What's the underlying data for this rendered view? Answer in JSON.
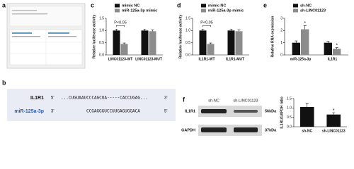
{
  "panel_labels": [
    "a",
    "b",
    "c",
    "d",
    "e",
    "f"
  ],
  "sequence": {
    "rows": [
      {
        "name": "IL1R1",
        "end5": "5'",
        "seq": "...CUGUAAUCCCAGCUA-----CACCUGAG...",
        "end3": "3'"
      },
      {
        "name": "miR-125a-3p",
        "end5": "3'",
        "seq": "CCGAGGGUCCUUGAGUGGACA",
        "end3": "5'"
      }
    ]
  },
  "blot": {
    "lanes": [
      "sh-NC",
      "sh-LINC01123"
    ],
    "proteins": [
      "IL1R1",
      "GAPDH"
    ],
    "sizes": [
      "56kDa",
      "37kDa"
    ]
  },
  "chart_data": [
    {
      "type": "bar",
      "ylabel": "Relative luciferase activity",
      "categories": [
        "LINC01123-WT",
        "LINC01123-MUT"
      ],
      "series": [
        {
          "name": "mimic NC",
          "color": "#111111",
          "values": [
            1.0,
            1.0
          ],
          "errors": [
            0.06,
            0.06
          ]
        },
        {
          "name": "miR-125a-3p mimic",
          "color": "#8c8c8c",
          "values": [
            0.45,
            0.97
          ],
          "errors": [
            0.04,
            0.06
          ]
        }
      ],
      "ylim": [
        0,
        1.5
      ],
      "yticks": [
        {
          "value": 0,
          "label": "0.0"
        },
        0.5,
        {
          "value": 1,
          "label": "1.0"
        },
        1.5
      ],
      "annotations": [
        "P<0.05"
      ]
    },
    {
      "type": "bar",
      "ylabel": "Relative luciferase activity",
      "categories": [
        "IL1R1-WT",
        "IL1R1-MUT"
      ],
      "series": [
        {
          "name": "mimic NC",
          "color": "#111111",
          "values": [
            1.0,
            1.0
          ],
          "errors": [
            0.06,
            0.06
          ]
        },
        {
          "name": "miR-125a-3p mimic",
          "color": "#8c8c8c",
          "values": [
            0.45,
            0.97
          ],
          "errors": [
            0.04,
            0.06
          ]
        }
      ],
      "ylim": [
        0,
        1.5
      ],
      "yticks": [
        {
          "value": 0,
          "label": "0.0"
        },
        0.5,
        {
          "value": 1,
          "label": "1.0"
        },
        1.5
      ],
      "annotations": [
        "P<0.05"
      ]
    },
    {
      "type": "bar",
      "ylabel": "Relative RNA expression",
      "categories": [
        "miR-125a-3p",
        "IL1R1"
      ],
      "series": [
        {
          "name": "sh-NC",
          "color": "#111111",
          "values": [
            1.0,
            1.0
          ],
          "errors": [
            0.15,
            0.12
          ]
        },
        {
          "name": "sh-LINC01123",
          "color": "#8c8c8c",
          "values": [
            2.1,
            0.5
          ],
          "errors": [
            0.3,
            0.1
          ]
        }
      ],
      "ylim": [
        0,
        3
      ],
      "yticks": [
        0,
        1,
        2,
        3
      ],
      "annotations": [
        "*",
        "*"
      ]
    },
    {
      "type": "bar",
      "ylabel": "IL1R1/GAPDH ratio",
      "categories": [
        "sh-NC",
        "sh-LINC01123"
      ],
      "values": [
        1.05,
        0.65
      ],
      "errors": [
        0.2,
        0.1
      ],
      "color": "#111111",
      "ylim": [
        0,
        1.5
      ],
      "yticks": [
        {
          "value": 0,
          "label": "0.0"
        },
        0.5,
        {
          "value": 1,
          "label": "1.0"
        },
        1.5
      ],
      "annotations": [
        "*"
      ]
    }
  ]
}
